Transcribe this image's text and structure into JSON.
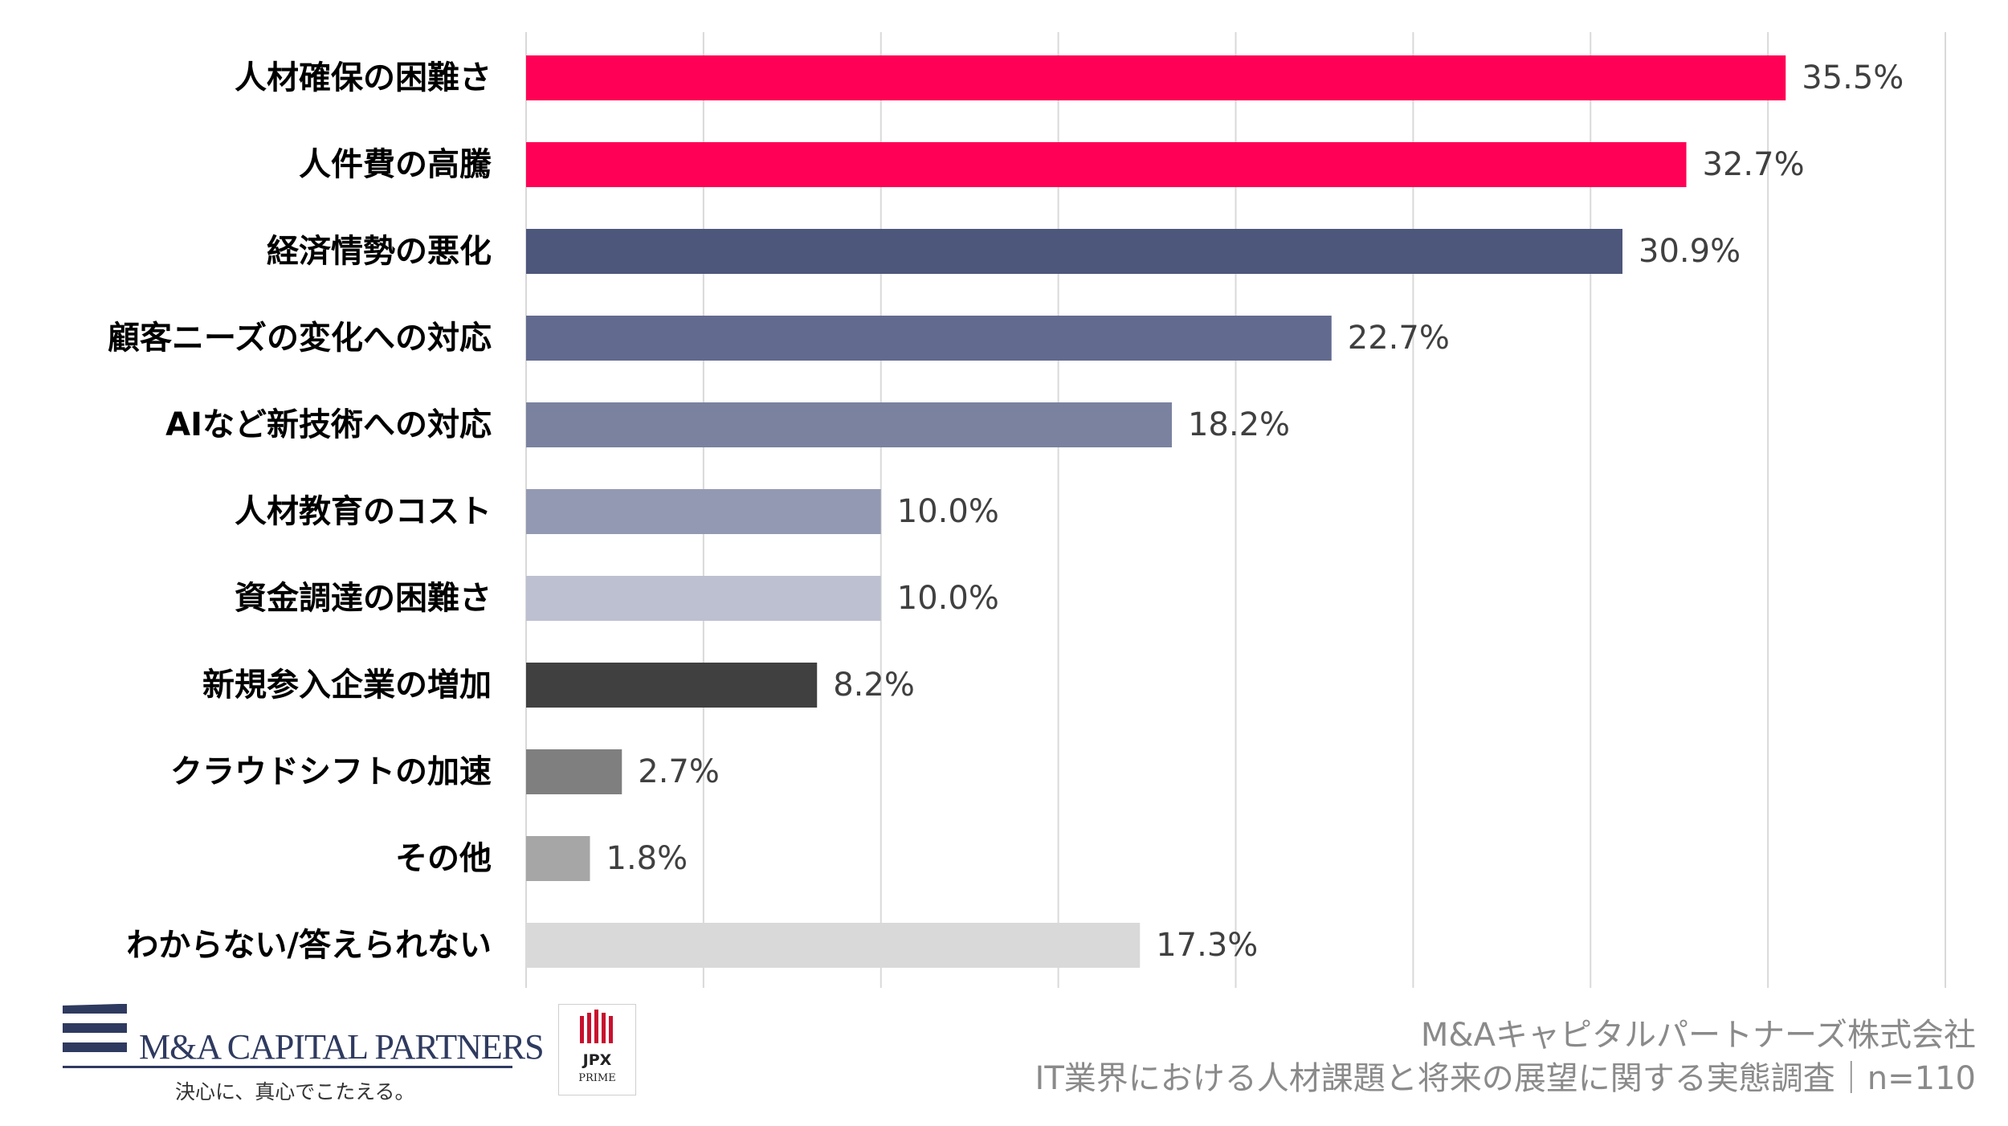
{
  "chart_data": {
    "type": "bar",
    "orientation": "horizontal",
    "categories": [
      "人材確保の困難さ",
      "人件費の高騰",
      "経済情勢の悪化",
      "顧客ニーズの変化への対応",
      "AIなど新技術への対応",
      "人材教育のコスト",
      "資金調達の困難さ",
      "新規参入企業の増加",
      "クラウドシフトの加速",
      "その他",
      "わからない/答えられない"
    ],
    "values": [
      35.5,
      32.7,
      30.9,
      22.7,
      18.2,
      10.0,
      10.0,
      8.2,
      2.7,
      1.8,
      17.3
    ],
    "value_labels": [
      "35.5%",
      "32.7%",
      "30.9%",
      "22.7%",
      "18.2%",
      "10.0%",
      "10.0%",
      "8.2%",
      "2.7%",
      "1.8%",
      "17.3%"
    ],
    "bar_colors": [
      "#ff0056",
      "#ff0056",
      "#4d567b",
      "#626b8f",
      "#7a82a0",
      "#9499b3",
      "#bcc0d0",
      "#404040",
      "#7f7f7f",
      "#a6a6a6",
      "#d9d9d9"
    ],
    "xlim": [
      0,
      40
    ],
    "grid": true,
    "title": "",
    "xlabel": "",
    "ylabel": ""
  },
  "footer": {
    "company": "M&Aキャピタルパートナーズ株式会社",
    "survey": "IT業界における人材課題と将来の展望に関する実態調査｜n=110"
  },
  "logo": {
    "name": "M&A CAPITAL PARTNERS",
    "tagline": "決心に、真心でこたえる。",
    "brand_color": "#2f3a60"
  },
  "jpx_badge": {
    "name": "JPX",
    "sub": "PRIME",
    "accent_color": "#c8102e"
  }
}
